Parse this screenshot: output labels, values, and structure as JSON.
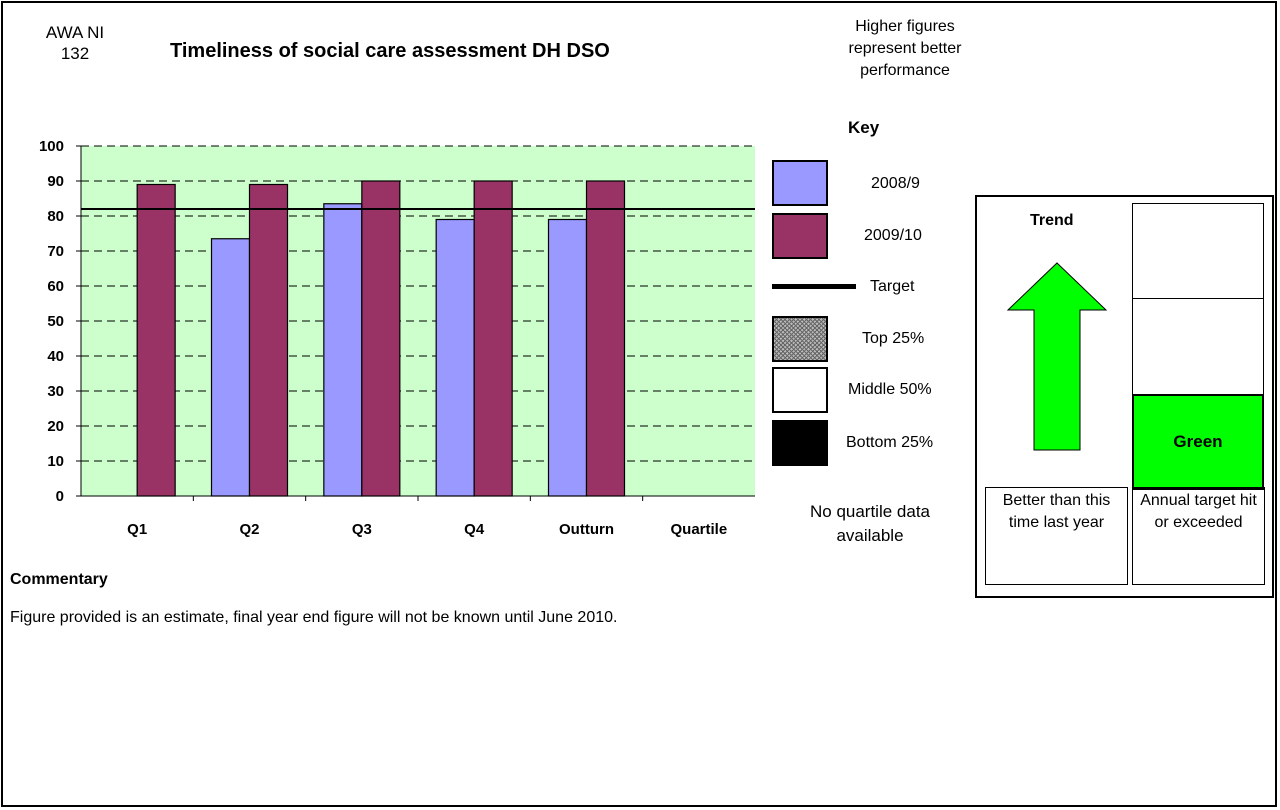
{
  "header": {
    "indicator_code": "AWA NI\n132",
    "title": "Timeliness of social care assessment DH DSO",
    "note": "Higher figures represent better performance"
  },
  "chart_data": {
    "type": "bar",
    "categories": [
      "Q1",
      "Q2",
      "Q3",
      "Q4",
      "Outturn",
      "Quartile"
    ],
    "series": [
      {
        "name": "2008/9",
        "color": "#9999ff",
        "values": [
          null,
          73.5,
          83.5,
          79,
          79,
          null
        ]
      },
      {
        "name": "2009/10",
        "color": "#993366",
        "values": [
          89,
          89,
          90,
          90,
          90,
          null
        ]
      }
    ],
    "target": 82,
    "ylim": [
      0,
      100
    ],
    "yticks": [
      0,
      10,
      20,
      30,
      40,
      50,
      60,
      70,
      80,
      90,
      100
    ],
    "plot_background": "#ccffcc",
    "grid": true
  },
  "key": {
    "title": "Key",
    "items": [
      {
        "label": "2008/9",
        "kind": "swatch",
        "color": "#9999ff"
      },
      {
        "label": "2009/10",
        "kind": "swatch",
        "color": "#993366"
      },
      {
        "label": "Target",
        "kind": "line",
        "color": "#000000"
      },
      {
        "label": "Top 25%",
        "kind": "hatch",
        "color": "#999999"
      },
      {
        "label": "Middle 50%",
        "kind": "swatch",
        "color": "#ffffff"
      },
      {
        "label": "Bottom 25%",
        "kind": "swatch",
        "color": "#000000"
      }
    ],
    "no_quartile": "No quartile data available"
  },
  "status": {
    "trend_title": "Trend",
    "trend_icon": "up-arrow-icon",
    "trend_color": "#00ff00",
    "trend_caption": "Better than this time last year",
    "rag_label": "Green",
    "rag_color": "#00ff00",
    "rag_caption": "Annual target hit or exceeded"
  },
  "commentary": {
    "title": "Commentary",
    "text": "Figure provided is an estimate, final year end figure will not be known until June 2010."
  }
}
